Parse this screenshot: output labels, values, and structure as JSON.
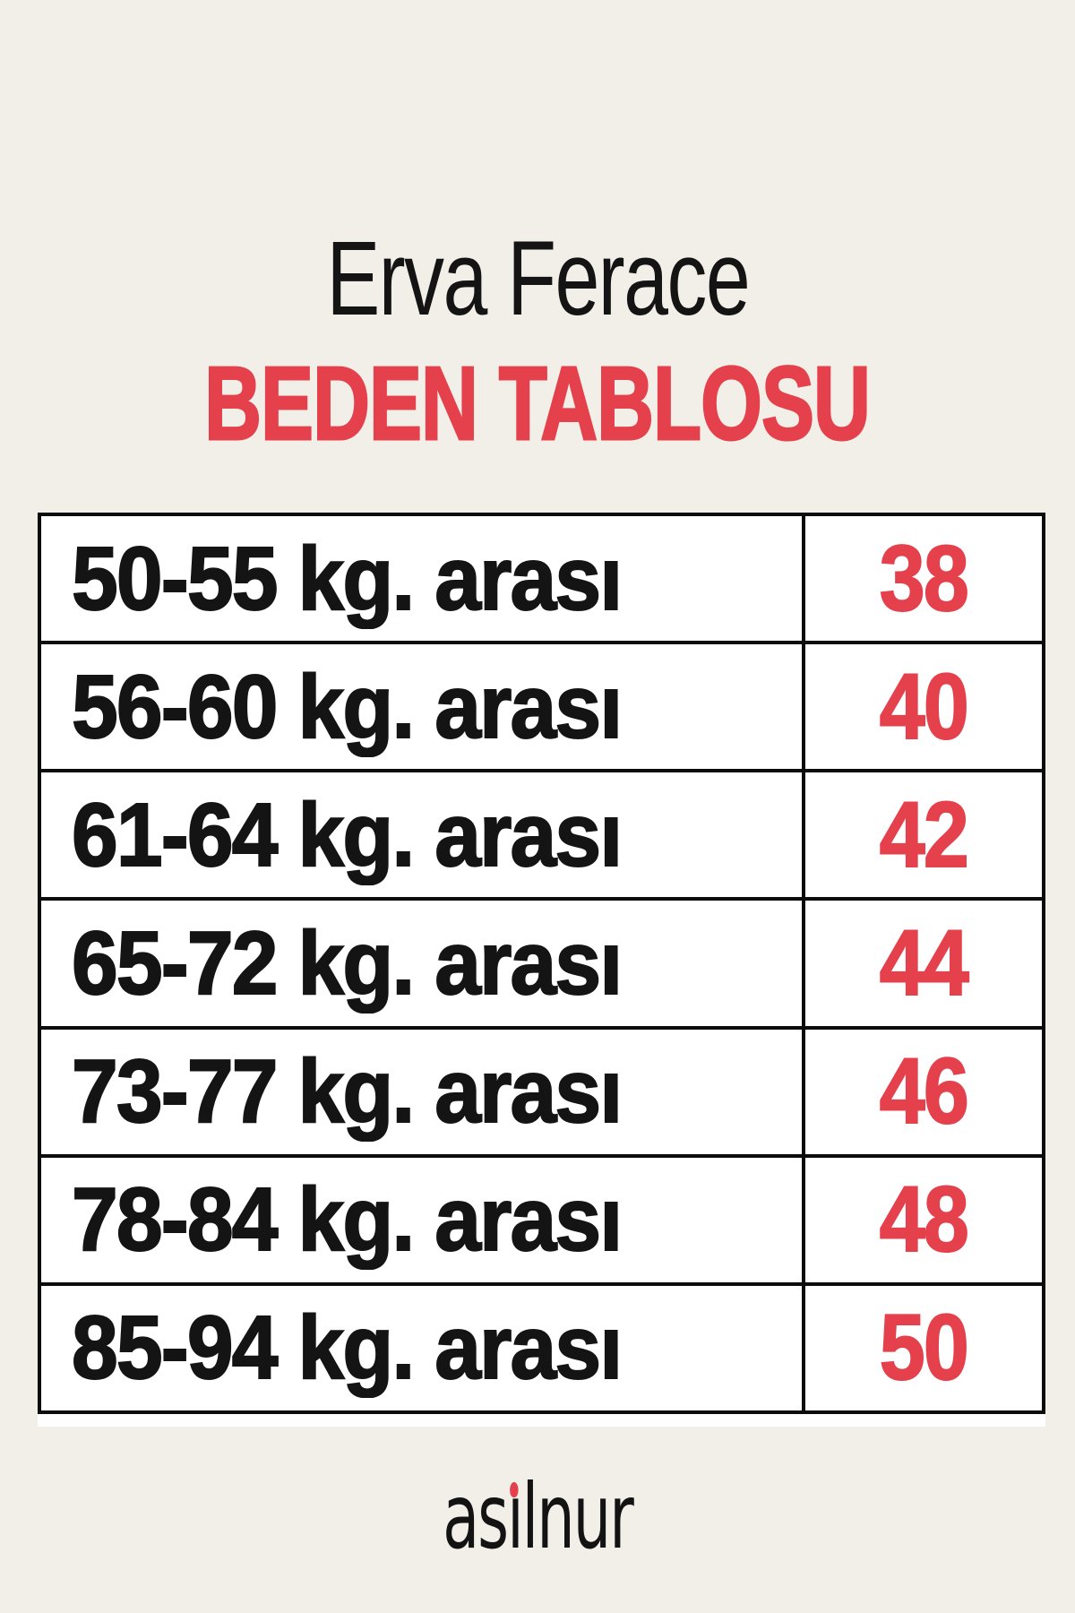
{
  "page": {
    "background_color": "#f2efe8",
    "accent_red": "#e4414c",
    "text_black": "#141414",
    "table_background": "#ffffff",
    "border_color": "#0c0c0c"
  },
  "header": {
    "title": "Erva Ferace",
    "subtitle": "BEDEN TABLOSU"
  },
  "size_table": {
    "rows": [
      {
        "weight": "50-55 kg. arası",
        "size": "38"
      },
      {
        "weight": "56-60 kg. arası",
        "size": "40"
      },
      {
        "weight": "61-64 kg. arası",
        "size": "42"
      },
      {
        "weight": "65-72 kg. arası",
        "size": "44"
      },
      {
        "weight": "73-77 kg. arası",
        "size": "46"
      },
      {
        "weight": "78-84 kg. arası",
        "size": "48"
      },
      {
        "weight": "85-94 kg. arası",
        "size": "50"
      }
    ]
  },
  "footer": {
    "brand_full": "asilnur",
    "brand_part1": "as",
    "brand_i": "ı",
    "brand_part2": "lnur"
  },
  "chart_data": {
    "type": "table",
    "title": "Erva Ferace",
    "subtitle": "BEDEN TABLOSU",
    "rows": [
      {
        "weight_range_kg": "50-55",
        "size": 38
      },
      {
        "weight_range_kg": "56-60",
        "size": 40
      },
      {
        "weight_range_kg": "61-64",
        "size": 42
      },
      {
        "weight_range_kg": "65-72",
        "size": 44
      },
      {
        "weight_range_kg": "73-77",
        "size": 46
      },
      {
        "weight_range_kg": "78-84",
        "size": 48
      },
      {
        "weight_range_kg": "85-94",
        "size": 50
      }
    ],
    "value_color": "#e4414c",
    "label_color": "#141414",
    "brand": "asilnur"
  }
}
